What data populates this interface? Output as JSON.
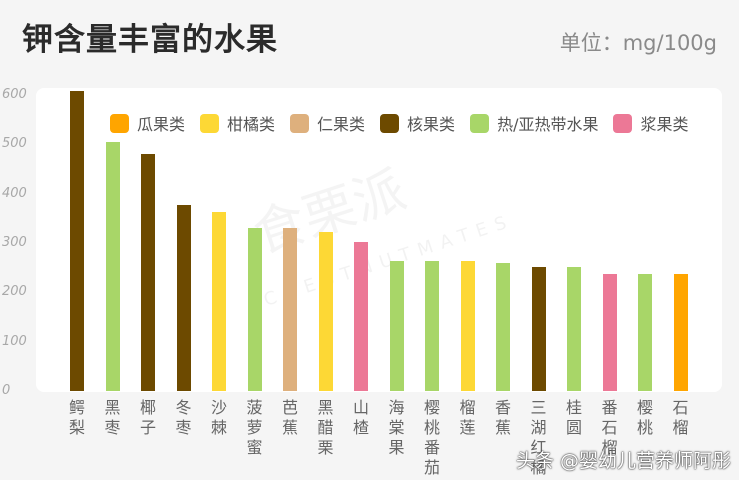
{
  "header": {
    "title": "钾含量丰富的水果",
    "unit": "单位：mg/100g"
  },
  "legend": [
    {
      "label": "瓜果类",
      "color": "#ffa500"
    },
    {
      "label": "柑橘类",
      "color": "#fdd835"
    },
    {
      "label": "仁果类",
      "color": "#deb07d"
    },
    {
      "label": "核果类",
      "color": "#6d4a00"
    },
    {
      "label": "热/亚热带水果",
      "color": "#a8d668"
    },
    {
      "label": "浆果类",
      "color": "#ec7896"
    }
  ],
  "watermark": {
    "main": "食栗派",
    "sub": "CHESTNUTMATES"
  },
  "credit": "头条 @婴幼儿营养师阿彤",
  "chart_data": {
    "type": "bar",
    "title": "钾含量丰富的水果",
    "ylabel": "单位：mg/100g",
    "xlabel": "",
    "ylim": [
      0,
      600
    ],
    "yticks": [
      0,
      100,
      200,
      300,
      400,
      500,
      600
    ],
    "grid": false,
    "legend_position": "top-inside",
    "categories": [
      "鳄梨",
      "黑枣",
      "椰子",
      "冬枣",
      "沙棘",
      "菠萝蜜",
      "芭蕉",
      "黑醋栗",
      "山楂",
      "海棠果",
      "樱桃番茄",
      "榴莲",
      "香蕉",
      "三湖红橘",
      "桂圆",
      "番石榴",
      "樱桃",
      "石榴"
    ],
    "values": [
      608,
      504,
      481,
      378,
      362,
      331,
      330,
      323,
      303,
      263,
      263,
      263,
      260,
      252,
      251,
      237,
      237,
      237
    ],
    "groups": [
      "核果类",
      "热/亚热带水果",
      "核果类",
      "核果类",
      "柑橘类",
      "热/亚热带水果",
      "仁果类",
      "柑橘类",
      "浆果类",
      "热/亚热带水果",
      "热/亚热带水果",
      "柑橘类",
      "热/亚热带水果",
      "核果类",
      "热/亚热带水果",
      "浆果类",
      "热/亚热带水果",
      "瓜果类"
    ],
    "colors": [
      "#6d4a00",
      "#a8d668",
      "#6d4a00",
      "#6d4a00",
      "#fdd835",
      "#a8d668",
      "#deb07d",
      "#fdd835",
      "#ec7896",
      "#a8d668",
      "#a8d668",
      "#fdd835",
      "#a8d668",
      "#6d4a00",
      "#a8d668",
      "#ec7896",
      "#a8d668",
      "#ffa500"
    ]
  }
}
